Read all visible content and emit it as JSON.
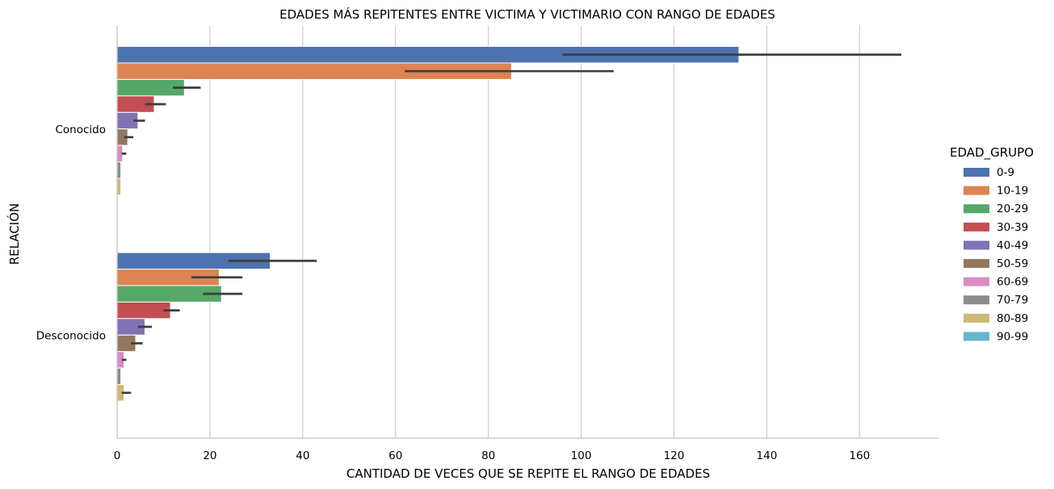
{
  "chart_data": {
    "type": "bar",
    "orientation": "horizontal",
    "title": "EDADES MÁS REPITENTES ENTRE VICTIMA Y VICTIMARIO CON RANGO DE EDADES",
    "xlabel": "CANTIDAD DE VECES QUE SE REPITE EL RANGO DE EDADES",
    "ylabel": "RELACIÓN",
    "xlim": [
      0,
      177
    ],
    "xticks": [
      0,
      20,
      40,
      60,
      80,
      100,
      120,
      140,
      160
    ],
    "grid": "vertical",
    "categories": [
      "Conocido",
      "Desconocido"
    ],
    "legend": {
      "title": "EDAD_GRUPO",
      "placement": "right"
    },
    "series": [
      {
        "name": "0-9",
        "color": "#4c72b0",
        "values": [
          134,
          33
        ],
        "ci": [
          [
            96,
            169
          ],
          [
            24,
            43
          ]
        ]
      },
      {
        "name": "10-19",
        "color": "#dd8452",
        "values": [
          85,
          22
        ],
        "ci": [
          [
            62,
            107
          ],
          [
            16,
            27
          ]
        ]
      },
      {
        "name": "20-29",
        "color": "#55a868",
        "values": [
          14.5,
          22.5
        ],
        "ci": [
          [
            12,
            18
          ],
          [
            18.5,
            27
          ]
        ]
      },
      {
        "name": "30-39",
        "color": "#c44e52",
        "values": [
          8,
          11.5
        ],
        "ci": [
          [
            6,
            10.5
          ],
          [
            10,
            13.5
          ]
        ]
      },
      {
        "name": "40-49",
        "color": "#8172b3",
        "values": [
          4.5,
          6
        ],
        "ci": [
          [
            3.5,
            6
          ],
          [
            4.5,
            7.5
          ]
        ]
      },
      {
        "name": "50-59",
        "color": "#937860",
        "values": [
          2.3,
          4
        ],
        "ci": [
          [
            1.5,
            3.5
          ],
          [
            3,
            5.5
          ]
        ]
      },
      {
        "name": "60-69",
        "color": "#da8bc3",
        "values": [
          1.2,
          1.5
        ],
        "ci": [
          [
            1,
            2
          ],
          [
            1,
            2
          ]
        ]
      },
      {
        "name": "70-79",
        "color": "#8c8c8c",
        "values": [
          0.8,
          0.8
        ],
        "ci": null
      },
      {
        "name": "80-89",
        "color": "#ccb974",
        "values": [
          0.8,
          1.5
        ],
        "ci": [
          null,
          [
            1,
            3
          ]
        ]
      },
      {
        "name": "90-99",
        "color": "#64b5cd",
        "values": [
          null,
          null
        ],
        "ci": null
      }
    ]
  }
}
